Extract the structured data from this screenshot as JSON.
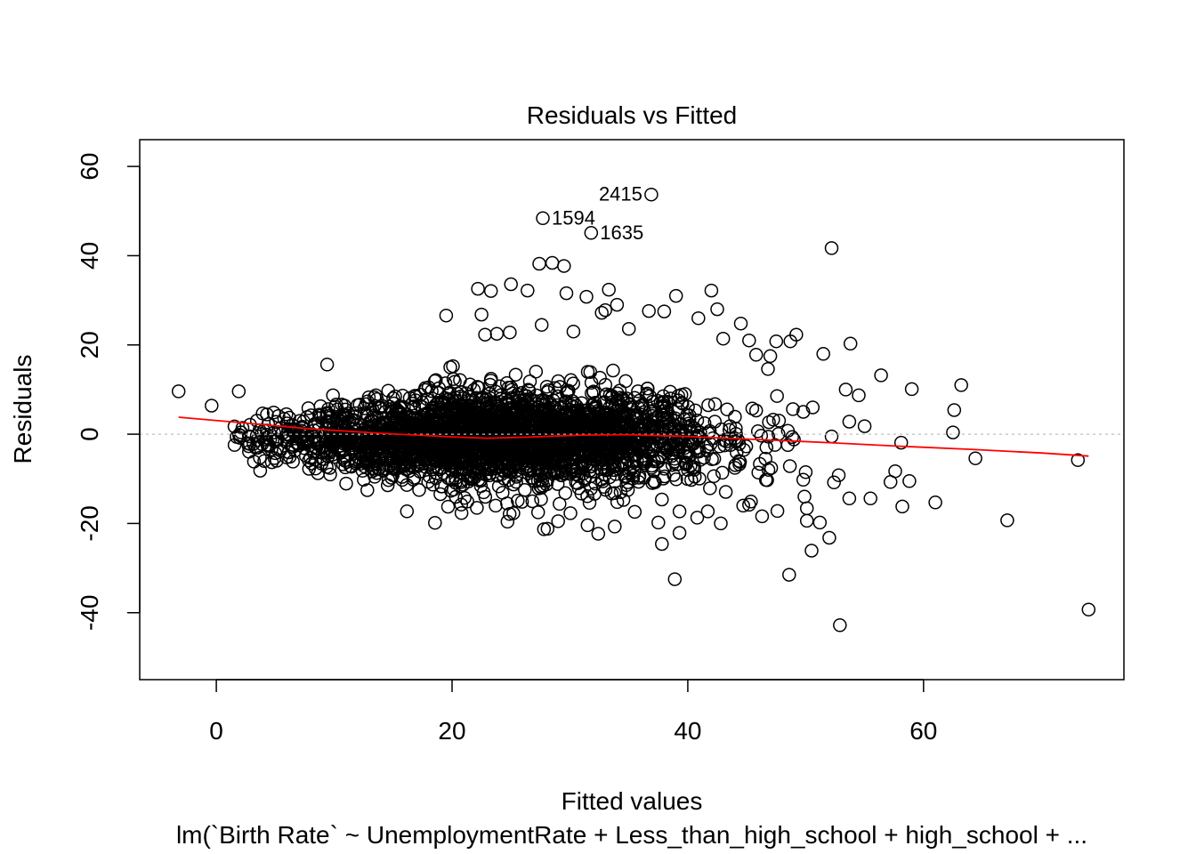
{
  "chart_data": {
    "type": "scatter",
    "title": "Residuals vs Fitted",
    "xlabel": "Fitted values",
    "ylabel": "Residuals",
    "subtitle": "lm(`Birth Rate` ~ UnemploymentRate + Less_than_high_school + high_school +  ...",
    "xlim": [
      -6.5,
      77
    ],
    "ylim": [
      -55,
      66
    ],
    "xticks": [
      0,
      20,
      40,
      60
    ],
    "yticks": [
      -40,
      -20,
      0,
      20,
      40,
      60
    ],
    "xtick_labels": [
      "0",
      "20",
      "40",
      "60"
    ],
    "ytick_labels": [
      "-40",
      "-20",
      "0",
      "20",
      "40",
      "60"
    ],
    "grid": false,
    "reference_line_y": 0,
    "labeled_points": [
      {
        "label": "2415",
        "x": 36.9,
        "y": 53.7
      },
      {
        "label": "1594",
        "x": 27.7,
        "y": 48.4
      },
      {
        "label": "1635",
        "x": 31.8,
        "y": 45.1
      }
    ],
    "outlier_points": [
      [
        -3.2,
        9.6
      ],
      [
        -0.4,
        6.4
      ],
      [
        1.9,
        9.6
      ],
      [
        9.4,
        15.6
      ],
      [
        52.2,
        41.7
      ],
      [
        59.0,
        10.1
      ],
      [
        49.2,
        22.3
      ],
      [
        48.7,
        20.8
      ],
      [
        47.5,
        20.8
      ],
      [
        45.2,
        21.0
      ],
      [
        51.5,
        18.0
      ],
      [
        53.8,
        20.3
      ],
      [
        56.4,
        13.2
      ],
      [
        53.4,
        10.0
      ],
      [
        63.2,
        11.0
      ],
      [
        62.6,
        5.4
      ],
      [
        62.5,
        0.4
      ],
      [
        64.4,
        -5.4
      ],
      [
        58.1,
        -1.9
      ],
      [
        57.6,
        -8.3
      ],
      [
        57.2,
        -10.7
      ],
      [
        58.2,
        -16.2
      ],
      [
        58.8,
        -10.5
      ],
      [
        61.0,
        -15.3
      ],
      [
        67.1,
        -19.3
      ],
      [
        73.1,
        -5.8
      ],
      [
        74.0,
        -39.3
      ],
      [
        52.9,
        -42.8
      ],
      [
        48.6,
        -31.5
      ],
      [
        50.5,
        -26.1
      ],
      [
        52.0,
        -23.2
      ],
      [
        51.2,
        -19.8
      ],
      [
        55.5,
        -14.4
      ],
      [
        53.7,
        -14.4
      ],
      [
        38.9,
        -32.5
      ],
      [
        37.8,
        -24.6
      ],
      [
        39.3,
        -22.1
      ],
      [
        32.4,
        -22.3
      ],
      [
        27.8,
        -21.3
      ],
      [
        27.3,
        -17.5
      ],
      [
        33.3,
        32.4
      ],
      [
        28.5,
        38.4
      ],
      [
        29.5,
        37.7
      ],
      [
        27.4,
        38.2
      ],
      [
        25.0,
        33.6
      ],
      [
        22.2,
        32.6
      ],
      [
        23.3,
        32.1
      ],
      [
        26.4,
        32.2
      ],
      [
        29.7,
        31.6
      ],
      [
        31.4,
        30.8
      ],
      [
        34.0,
        29.0
      ],
      [
        42.0,
        32.2
      ],
      [
        39.0,
        31.0
      ],
      [
        19.5,
        26.6
      ],
      [
        22.5,
        26.8
      ],
      [
        36.7,
        27.6
      ],
      [
        38.0,
        27.5
      ],
      [
        42.5,
        28.0
      ],
      [
        44.5,
        24.8
      ],
      [
        40.9,
        26.0
      ],
      [
        33.0,
        27.8
      ],
      [
        32.7,
        27.2
      ],
      [
        30.3,
        23.0
      ],
      [
        27.6,
        24.5
      ],
      [
        23.8,
        22.5
      ],
      [
        24.9,
        22.8
      ],
      [
        22.8,
        22.3
      ],
      [
        35.0,
        23.6
      ],
      [
        43.0,
        21.4
      ],
      [
        47.0,
        17.5
      ],
      [
        46.8,
        14.6
      ],
      [
        45.8,
        17.8
      ],
      [
        54.5,
        8.7
      ],
      [
        55.0,
        1.8
      ],
      [
        53.7,
        2.8
      ],
      [
        52.2,
        -0.5
      ],
      [
        50.6,
        6.0
      ],
      [
        49.8,
        5.0
      ],
      [
        50.0,
        -8.5
      ],
      [
        52.8,
        -9.2
      ],
      [
        52.4,
        -10.8
      ],
      [
        49.9,
        -14.0
      ],
      [
        50.1,
        -16.6
      ],
      [
        50.1,
        -19.4
      ],
      [
        49.8,
        -10.2
      ],
      [
        47.6,
        -17.2
      ],
      [
        46.3,
        -18.4
      ],
      [
        44.7,
        -16.0
      ],
      [
        42.8,
        -20.0
      ],
      [
        39.3,
        -17.3
      ],
      [
        40.8,
        -18.7
      ],
      [
        35.5,
        -17.4
      ],
      [
        37.5,
        -19.8
      ],
      [
        33.8,
        -20.7
      ],
      [
        31.5,
        -20.4
      ],
      [
        28.1,
        -21.2
      ],
      [
        29.0,
        -19.5
      ],
      [
        25.2,
        -17.7
      ],
      [
        23.7,
        -16.0
      ],
      [
        21.3,
        -15.1
      ],
      [
        34.3,
        -13.0
      ],
      [
        41.7,
        -17.3
      ],
      [
        45.2,
        -15.8
      ]
    ],
    "bulk_series": {
      "name": "",
      "description_values": {
        "x_center": 24.0,
        "x_spread": 9.5,
        "n_points": 2900,
        "residual_sd_at_center": 5.5
      }
    },
    "smoother": {
      "x": [
        -3.2,
        2,
        8,
        14,
        20,
        23,
        27,
        31,
        35,
        40,
        46,
        52,
        58,
        64,
        70,
        74.0
      ],
      "y": [
        3.8,
        2.6,
        1.2,
        0.2,
        -0.6,
        -0.9,
        -0.6,
        -0.2,
        -0.1,
        -0.5,
        -1.2,
        -1.9,
        -2.7,
        -3.4,
        -4.2,
        -4.9
      ]
    },
    "colors": {
      "points": "#000000",
      "smoother": "#ff0000",
      "reference_line": "#bebebe",
      "axis": "#000000"
    }
  }
}
